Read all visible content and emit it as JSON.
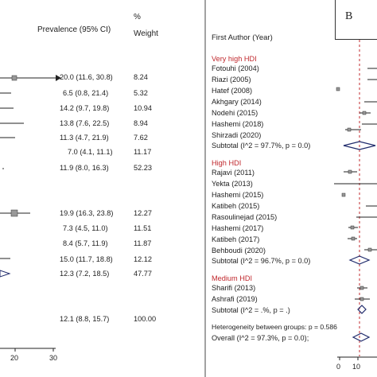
{
  "left_panel": {
    "header_prevalence": "Prevalence (95% CI)",
    "header_pct": "%",
    "header_weight": "Weight",
    "rows": [
      {
        "ci": "20.0 (11.6, 30.8)",
        "w": "8.24"
      },
      {
        "ci": "6.5 (0.8, 21.4)",
        "w": "5.32"
      },
      {
        "ci": "14.2 (9.7, 19.8)",
        "w": "10.94"
      },
      {
        "ci": "13.8 (7.6, 22.5)",
        "w": "8.94"
      },
      {
        "ci": "11.3 (4.7, 21.9)",
        "w": "7.62"
      },
      {
        "ci": "7.0 (4.1, 11.1)",
        "w": "11.17"
      },
      {
        "ci": "11.9 (8.0, 16.3)",
        "w": "52.23"
      },
      {
        "ci": "19.9 (16.3, 23.8)",
        "w": "12.27"
      },
      {
        "ci": "7.3 (4.5, 11.0)",
        "w": "11.51"
      },
      {
        "ci": "8.4 (5.7, 11.9)",
        "w": "11.87"
      },
      {
        "ci": "15.0 (11.7, 18.8)",
        "w": "12.12"
      },
      {
        "ci": "12.3 (7.2, 18.5)",
        "w": "47.77"
      },
      {
        "ci": "12.1 (8.8, 15.7)",
        "w": "100.00"
      }
    ],
    "axis_ticks": [
      "20",
      "30"
    ]
  },
  "right_panel": {
    "panel_label": "B",
    "header": "First Author (Year)",
    "groups": [
      {
        "name": "Very high HDI",
        "authors": [
          "Fotouhi (2004)",
          "Riazi (2005)",
          "Hatef (2008)",
          "Akhgary (2014)",
          "Nodehi (2015)",
          "Hashemi (2018)",
          "Shirzadi (2020)"
        ],
        "subtotal": "Subtotal  (I^2 = 97.7%, p = 0.0)"
      },
      {
        "name": "High HDI",
        "authors": [
          "Rajavi (2011)",
          "Yekta (2013)",
          "Hashemi (2015)",
          "Katibeh (2015)",
          "Rasoulinejad (2015)",
          "Hashemi (2017)",
          "Katibeh (2017)",
          "Behboudi (2020)"
        ],
        "subtotal": "Subtotal  (I^2 = 96.7%, p = 0.0)"
      },
      {
        "name": "Medium HDI",
        "authors": [
          "Sharifi (2013)",
          "Ashrafi (2019)"
        ],
        "subtotal": "Subtotal  (I^2 = .%, p = .)"
      }
    ],
    "heterogeneity": "Heterogeneity between groups: p = 0.586",
    "overall": "Overall  (I^2 = 97.3%, p = 0.0);",
    "axis_ticks": [
      "0",
      "10"
    ]
  },
  "colors": {
    "group_heading": "#c0282d",
    "diamond": "#1f2a6b",
    "ref_line": "#c0282d"
  }
}
